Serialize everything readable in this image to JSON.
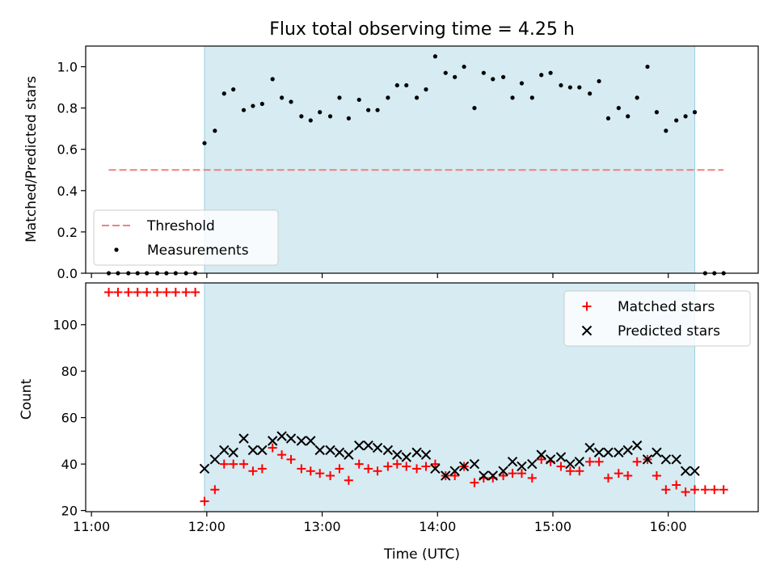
{
  "chart_data": [
    {
      "type": "scatter",
      "title": "Flux total observing time = 4.25 h",
      "xlabel": "",
      "ylabel": "Matched/Predicted stars",
      "xlim": [
        10.95,
        16.78
      ],
      "ylim": [
        0.0,
        1.1
      ],
      "yticks": [
        0.0,
        0.2,
        0.4,
        0.6,
        0.8,
        1.0
      ],
      "ytick_labels": [
        "0.0",
        "0.2",
        "0.4",
        "0.6",
        "0.8",
        "1.0"
      ],
      "shaded_span": [
        11.98,
        16.23
      ],
      "legend_position": "lower-left",
      "series": [
        {
          "name": "Threshold",
          "style": "dashed-line",
          "color": "#f08080",
          "x": [
            11.15,
            16.48
          ],
          "y": [
            0.5,
            0.5
          ]
        },
        {
          "name": "Measurements",
          "style": "dot",
          "color": "#000000",
          "x": [
            11.15,
            11.23,
            11.32,
            11.4,
            11.48,
            11.57,
            11.65,
            11.73,
            11.82,
            11.9,
            11.98,
            12.07,
            12.15,
            12.23,
            12.32,
            12.4,
            12.48,
            12.57,
            12.65,
            12.73,
            12.82,
            12.9,
            12.98,
            13.07,
            13.15,
            13.23,
            13.32,
            13.4,
            13.48,
            13.57,
            13.65,
            13.73,
            13.82,
            13.9,
            13.98,
            14.07,
            14.15,
            14.23,
            14.32,
            14.4,
            14.48,
            14.57,
            14.65,
            14.73,
            14.82,
            14.9,
            14.98,
            15.07,
            15.15,
            15.23,
            15.32,
            15.4,
            15.48,
            15.57,
            15.65,
            15.73,
            15.82,
            15.9,
            15.98,
            16.07,
            16.15,
            16.23,
            16.32,
            16.4,
            16.48
          ],
          "y": [
            0,
            0,
            0,
            0,
            0,
            0,
            0,
            0,
            0,
            0,
            0.63,
            0.69,
            0.87,
            0.89,
            0.79,
            0.81,
            0.82,
            0.94,
            0.85,
            0.83,
            0.76,
            0.74,
            0.78,
            0.76,
            0.85,
            0.75,
            0.84,
            0.79,
            0.79,
            0.85,
            0.91,
            0.91,
            0.85,
            0.89,
            1.05,
            0.97,
            0.95,
            1.0,
            0.8,
            0.97,
            0.94,
            0.95,
            0.85,
            0.92,
            0.85,
            0.96,
            0.97,
            0.91,
            0.9,
            0.9,
            0.87,
            0.93,
            0.75,
            0.8,
            0.76,
            0.85,
            1.0,
            0.78,
            0.69,
            0.74,
            0.76,
            0.78,
            0,
            0,
            0
          ]
        }
      ]
    },
    {
      "type": "scatter",
      "title": "",
      "xlabel": "Time (UTC)",
      "ylabel": "Count",
      "xlim": [
        10.95,
        16.78
      ],
      "ylim": [
        19.5,
        118
      ],
      "yticks": [
        20,
        40,
        60,
        80,
        100
      ],
      "ytick_labels": [
        "20",
        "40",
        "60",
        "80",
        "100"
      ],
      "xticks": [
        11,
        12,
        13,
        14,
        15,
        16
      ],
      "xtick_labels": [
        "11:00",
        "12:00",
        "13:00",
        "14:00",
        "15:00",
        "16:00"
      ],
      "shaded_span": [
        11.98,
        16.23
      ],
      "legend_position": "upper-right",
      "series": [
        {
          "name": "Matched stars",
          "style": "plus",
          "color": "#ff0000",
          "x": [
            11.15,
            11.23,
            11.32,
            11.4,
            11.48,
            11.57,
            11.65,
            11.73,
            11.82,
            11.9,
            11.98,
            12.07,
            12.15,
            12.23,
            12.32,
            12.4,
            12.48,
            12.57,
            12.65,
            12.73,
            12.82,
            12.9,
            12.98,
            13.07,
            13.15,
            13.23,
            13.32,
            13.4,
            13.48,
            13.57,
            13.65,
            13.73,
            13.82,
            13.9,
            13.98,
            14.07,
            14.15,
            14.23,
            14.32,
            14.4,
            14.48,
            14.57,
            14.65,
            14.73,
            14.82,
            14.9,
            14.98,
            15.07,
            15.15,
            15.23,
            15.32,
            15.4,
            15.48,
            15.57,
            15.65,
            15.73,
            15.82,
            15.9,
            15.98,
            16.07,
            16.15,
            16.23,
            16.32,
            16.4,
            16.48
          ],
          "y": [
            114,
            114,
            114,
            114,
            114,
            114,
            114,
            114,
            114,
            114,
            24,
            29,
            40,
            40,
            40,
            37,
            38,
            47,
            44,
            42,
            38,
            37,
            36,
            35,
            38,
            33,
            40,
            38,
            37,
            39,
            40,
            39,
            38,
            39,
            40,
            35,
            35,
            39,
            32,
            34,
            34,
            35,
            36,
            36,
            34,
            42,
            41,
            39,
            37,
            37,
            41,
            41,
            34,
            36,
            35,
            41,
            42,
            35,
            29,
            31,
            28,
            29,
            29,
            29,
            29
          ]
        },
        {
          "name": "Predicted stars",
          "style": "x",
          "color": "#000000",
          "x": [
            11.98,
            12.07,
            12.15,
            12.23,
            12.32,
            12.4,
            12.48,
            12.57,
            12.65,
            12.73,
            12.82,
            12.9,
            12.98,
            13.07,
            13.15,
            13.23,
            13.32,
            13.4,
            13.48,
            13.57,
            13.65,
            13.73,
            13.82,
            13.9,
            13.98,
            14.07,
            14.15,
            14.23,
            14.32,
            14.4,
            14.48,
            14.57,
            14.65,
            14.73,
            14.82,
            14.9,
            14.98,
            15.07,
            15.15,
            15.23,
            15.32,
            15.4,
            15.48,
            15.57,
            15.65,
            15.73,
            15.82,
            15.9,
            15.98,
            16.07,
            16.15,
            16.23
          ],
          "y": [
            38,
            42,
            46,
            45,
            51,
            46,
            46,
            50,
            52,
            51,
            50,
            50,
            46,
            46,
            45,
            44,
            48,
            48,
            47,
            46,
            44,
            43,
            45,
            44,
            38,
            35,
            37,
            39,
            40,
            35,
            35,
            37,
            41,
            39,
            40,
            44,
            42,
            43,
            40,
            41,
            47,
            45,
            45,
            45,
            46,
            48,
            42,
            45,
            42,
            42,
            37,
            37
          ]
        }
      ]
    }
  ]
}
